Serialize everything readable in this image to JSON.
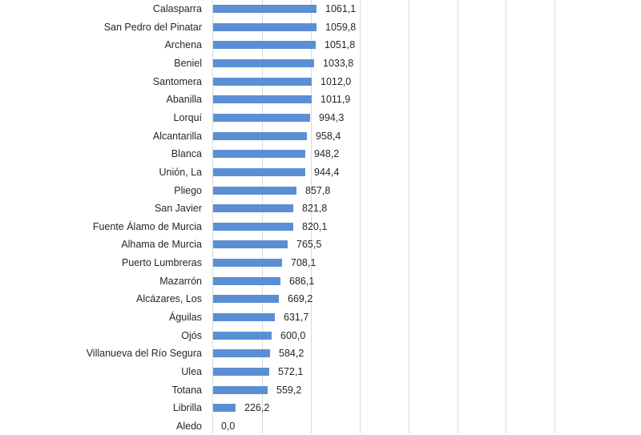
{
  "chart_data": {
    "type": "bar",
    "orientation": "horizontal",
    "title": "",
    "xlabel": "",
    "ylabel": "",
    "xlim": [
      0,
      3500
    ],
    "grid": true,
    "gridline_step": 500,
    "gridlines": [
      500,
      1000,
      1500,
      2000,
      2500,
      3000,
      3500
    ],
    "bar_color": "#5b8fd5",
    "categories": [
      "Calasparra",
      "San Pedro del Pinatar",
      "Archena",
      "Beniel",
      "Santomera",
      "Abanilla",
      "Lorquí",
      "Alcantarilla",
      "Blanca",
      "Unión, La",
      "Pliego",
      "San Javier",
      "Fuente Álamo de Murcia",
      "Alhama de Murcia",
      "Puerto Lumbreras",
      "Mazarrón",
      "Alcázares, Los",
      "Águilas",
      "Ojós",
      "Villanueva del Río Segura",
      "Ulea",
      "Totana",
      "Librilla",
      "Aledo"
    ],
    "values": [
      1061.1,
      1059.8,
      1051.8,
      1033.8,
      1012.0,
      1011.9,
      994.3,
      958.4,
      948.2,
      944.4,
      857.8,
      821.8,
      820.1,
      765.5,
      708.1,
      686.1,
      669.2,
      631.7,
      600.0,
      584.2,
      572.1,
      559.2,
      226.2,
      0.0
    ],
    "value_labels": [
      "1061,1",
      "1059,8",
      "1051,8",
      "1033,8",
      "1012,0",
      "1011,9",
      "994,3",
      "958,4",
      "948,2",
      "944,4",
      "857,8",
      "821,8",
      "820,1",
      "765,5",
      "708,1",
      "686,1",
      "669,2",
      "631,7",
      "600,0",
      "584,2",
      "572,1",
      "559,2",
      "226,2",
      "0,0"
    ]
  }
}
